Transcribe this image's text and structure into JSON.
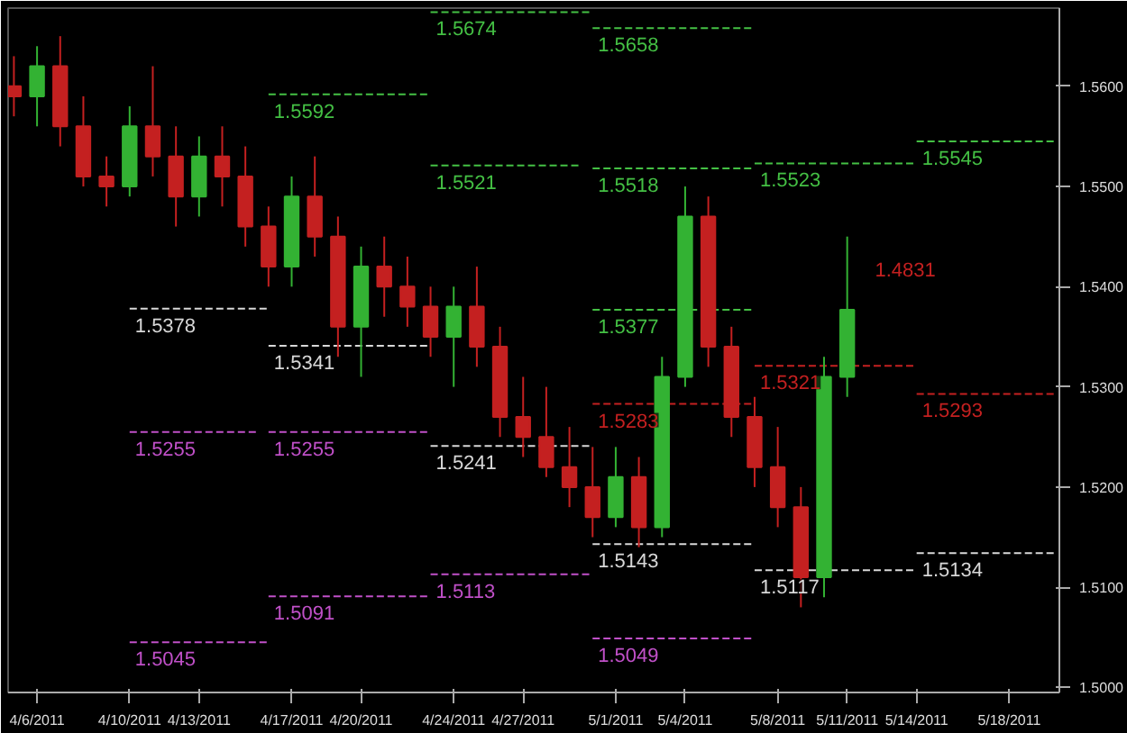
{
  "chart_data": {
    "type": "candlestick",
    "x": [
      "2011-04-05",
      "2011-04-06",
      "2011-04-07",
      "2011-04-08",
      "2011-04-09",
      "2011-04-10",
      "2011-04-11",
      "2011-04-12",
      "2011-04-13",
      "2011-04-14",
      "2011-04-15",
      "2011-04-16",
      "2011-04-17",
      "2011-04-18",
      "2011-04-19",
      "2011-04-20",
      "2011-04-21",
      "2011-04-22",
      "2011-04-23",
      "2011-04-24",
      "2011-04-25",
      "2011-04-26",
      "2011-04-27",
      "2011-04-28",
      "2011-04-29",
      "2011-04-30",
      "2011-05-01",
      "2011-05-02",
      "2011-05-03",
      "2011-05-04",
      "2011-05-05",
      "2011-05-06",
      "2011-05-07",
      "2011-05-08",
      "2011-05-09",
      "2011-05-10",
      "2011-05-11"
    ],
    "ohlc": [
      [
        1.56,
        1.563,
        1.557,
        1.559
      ],
      [
        1.559,
        1.564,
        1.556,
        1.562
      ],
      [
        1.562,
        1.565,
        1.554,
        1.556
      ],
      [
        1.556,
        1.559,
        1.55,
        1.551
      ],
      [
        1.551,
        1.553,
        1.548,
        1.55
      ],
      [
        1.55,
        1.558,
        1.549,
        1.556
      ],
      [
        1.556,
        1.562,
        1.551,
        1.553
      ],
      [
        1.553,
        1.556,
        1.546,
        1.549
      ],
      [
        1.549,
        1.555,
        1.547,
        1.553
      ],
      [
        1.553,
        1.556,
        1.548,
        1.551
      ],
      [
        1.551,
        1.554,
        1.544,
        1.546
      ],
      [
        1.546,
        1.548,
        1.54,
        1.542
      ],
      [
        1.542,
        1.551,
        1.54,
        1.549
      ],
      [
        1.549,
        1.553,
        1.543,
        1.545
      ],
      [
        1.545,
        1.547,
        1.533,
        1.536
      ],
      [
        1.536,
        1.544,
        1.531,
        1.542
      ],
      [
        1.542,
        1.545,
        1.537,
        1.54
      ],
      [
        1.54,
        1.543,
        1.536,
        1.538
      ],
      [
        1.538,
        1.54,
        1.533,
        1.535
      ],
      [
        1.535,
        1.54,
        1.53,
        1.538
      ],
      [
        1.538,
        1.542,
        1.532,
        1.534
      ],
      [
        1.534,
        1.536,
        1.525,
        1.527
      ],
      [
        1.527,
        1.531,
        1.523,
        1.525
      ],
      [
        1.525,
        1.53,
        1.521,
        1.522
      ],
      [
        1.522,
        1.526,
        1.518,
        1.52
      ],
      [
        1.52,
        1.524,
        1.515,
        1.517
      ],
      [
        1.517,
        1.524,
        1.516,
        1.521
      ],
      [
        1.521,
        1.523,
        1.514,
        1.516
      ],
      [
        1.516,
        1.533,
        1.515,
        1.531
      ],
      [
        1.531,
        1.55,
        1.53,
        1.547
      ],
      [
        1.547,
        1.549,
        1.532,
        1.534
      ],
      [
        1.534,
        1.536,
        1.525,
        1.527
      ],
      [
        1.527,
        1.529,
        1.52,
        1.522
      ],
      [
        1.522,
        1.526,
        1.516,
        1.518
      ],
      [
        1.518,
        1.52,
        1.508,
        1.511
      ],
      [
        1.511,
        1.533,
        1.509,
        1.531
      ],
      [
        1.531,
        1.545,
        1.529,
        1.5377
      ]
    ],
    "xlim": [
      "2011-04-04T18:00",
      "2011-05-20T04:00"
    ],
    "xticks": [
      {
        "value": "2011-04-06",
        "label": "4/6/2011"
      },
      {
        "value": "2011-04-10",
        "label": "4/10/2011"
      },
      {
        "value": "2011-04-13",
        "label": "4/13/2011"
      },
      {
        "value": "2011-04-17",
        "label": "4/17/2011"
      },
      {
        "value": "2011-04-20",
        "label": "4/20/2011"
      },
      {
        "value": "2011-04-24",
        "label": "4/24/2011"
      },
      {
        "value": "2011-04-27",
        "label": "4/27/2011"
      },
      {
        "value": "2011-05-01",
        "label": "5/1/2011"
      },
      {
        "value": "2011-05-04",
        "label": "5/4/2011"
      },
      {
        "value": "2011-05-08",
        "label": "5/8/2011"
      },
      {
        "value": "2011-05-11",
        "label": "5/11/2011"
      },
      {
        "value": "2011-05-14",
        "label": "5/14/2011"
      },
      {
        "value": "2011-05-18",
        "label": "5/18/2011"
      }
    ],
    "ylim": [
      1.4995,
      1.5678
    ],
    "yticks": [
      {
        "value": 1.5,
        "label": "1.5000"
      },
      {
        "value": 1.51,
        "label": "1.5100"
      },
      {
        "value": 1.52,
        "label": "1.5200"
      },
      {
        "value": 1.53,
        "label": "1.5300"
      },
      {
        "value": 1.54,
        "label": "1.5400"
      },
      {
        "value": 1.55,
        "label": "1.5500"
      },
      {
        "value": 1.56,
        "label": "1.5600"
      }
    ],
    "grid": false,
    "series": [
      {
        "type": "line",
        "line_style": "dashed",
        "name": "1.5674",
        "color": "#44c044",
        "x": [
          "2011-04-23",
          "2011-04-30"
        ],
        "values": [
          1.5674,
          1.5674
        ]
      },
      {
        "type": "line",
        "line_style": "dashed",
        "name": "1.5658",
        "color": "#44c044",
        "x": [
          "2011-04-30",
          "2011-05-07"
        ],
        "values": [
          1.5658,
          1.5658
        ]
      },
      {
        "type": "line",
        "line_style": "dashed",
        "name": "1.5592",
        "color": "#44c044",
        "x": [
          "2011-04-16",
          "2011-04-23"
        ],
        "values": [
          1.5592,
          1.5592
        ]
      },
      {
        "type": "line",
        "line_style": "dashed",
        "name": "1.5521",
        "color": "#44c044",
        "x": [
          "2011-04-23",
          "2011-04-29T12:00"
        ],
        "values": [
          1.5521,
          1.5521
        ]
      },
      {
        "type": "line",
        "line_style": "dashed",
        "name": "1.5518",
        "color": "#44c044",
        "x": [
          "2011-04-30",
          "2011-05-07"
        ],
        "values": [
          1.5518,
          1.5518
        ]
      },
      {
        "type": "line",
        "line_style": "dashed",
        "name": "1.5523",
        "color": "#44c044",
        "x": [
          "2011-05-07",
          "2011-05-14"
        ],
        "values": [
          1.5523,
          1.5523
        ]
      },
      {
        "type": "line",
        "line_style": "dashed",
        "name": "1.5545",
        "color": "#44c044",
        "x": [
          "2011-05-14",
          "2011-05-20"
        ],
        "values": [
          1.5545,
          1.5545
        ]
      },
      {
        "type": "line",
        "line_style": "dashed",
        "name": "1.5377",
        "color": "#44c044",
        "x": [
          "2011-04-30",
          "2011-05-07"
        ],
        "values": [
          1.5377,
          1.5377
        ]
      },
      {
        "type": "line",
        "line_style": "dashed",
        "name": "1.5378",
        "color": "#d8d8d8",
        "x": [
          "2011-04-10",
          "2011-04-16"
        ],
        "values": [
          1.5378,
          1.5378
        ]
      },
      {
        "type": "line",
        "line_style": "dashed",
        "name": "1.5341",
        "color": "#d8d8d8",
        "x": [
          "2011-04-16",
          "2011-04-23"
        ],
        "values": [
          1.5341,
          1.5341
        ]
      },
      {
        "type": "line",
        "line_style": "dashed",
        "name": "1.5255",
        "color": "#c050c8",
        "x": [
          "2011-04-10",
          "2011-04-15T12:00"
        ],
        "values": [
          1.5255,
          1.5255
        ]
      },
      {
        "type": "line",
        "line_style": "dashed",
        "name": "1.5255",
        "color": "#c050c8",
        "x": [
          "2011-04-16",
          "2011-04-23"
        ],
        "values": [
          1.5255,
          1.5255
        ]
      },
      {
        "type": "line",
        "line_style": "dashed",
        "name": "1.5241",
        "color": "#d8d8d8",
        "x": [
          "2011-04-23",
          "2011-04-30"
        ],
        "values": [
          1.5241,
          1.5241
        ]
      },
      {
        "type": "line",
        "line_style": "dashed",
        "name": "1.5283",
        "color": "#c42020",
        "x": [
          "2011-04-30",
          "2011-05-07"
        ],
        "values": [
          1.5283,
          1.5283
        ]
      },
      {
        "type": "line",
        "line_style": "dashed",
        "name": "1.5321",
        "color": "#c42020",
        "x": [
          "2011-05-07",
          "2011-05-14"
        ],
        "values": [
          1.5321,
          1.5321
        ]
      },
      {
        "type": "line",
        "line_style": "dashed",
        "name": "1.5293",
        "color": "#c42020",
        "x": [
          "2011-05-14",
          "2011-05-20"
        ],
        "values": [
          1.5293,
          1.5293
        ]
      },
      {
        "type": "line",
        "line_style": "dashed",
        "name": "1.5143",
        "color": "#d8d8d8",
        "x": [
          "2011-04-30",
          "2011-05-07"
        ],
        "values": [
          1.5143,
          1.5143
        ]
      },
      {
        "type": "line",
        "line_style": "dashed",
        "name": "1.5117",
        "color": "#d8d8d8",
        "x": [
          "2011-05-07",
          "2011-05-14"
        ],
        "values": [
          1.5117,
          1.5117
        ]
      },
      {
        "type": "line",
        "line_style": "dashed",
        "name": "1.5134",
        "color": "#d8d8d8",
        "x": [
          "2011-05-14",
          "2011-05-20"
        ],
        "values": [
          1.5134,
          1.5134
        ]
      },
      {
        "type": "line",
        "line_style": "dashed",
        "name": "1.5113",
        "color": "#c050c8",
        "x": [
          "2011-04-23",
          "2011-04-30"
        ],
        "values": [
          1.5113,
          1.5113
        ]
      },
      {
        "type": "line",
        "line_style": "dashed",
        "name": "1.5091",
        "color": "#c050c8",
        "x": [
          "2011-04-16",
          "2011-04-23"
        ],
        "values": [
          1.5091,
          1.5091
        ]
      },
      {
        "type": "line",
        "line_style": "dashed",
        "name": "1.5049",
        "color": "#c050c8",
        "x": [
          "2011-04-30",
          "2011-05-07"
        ],
        "values": [
          1.5049,
          1.5049
        ]
      },
      {
        "type": "line",
        "line_style": "dashed",
        "name": "1.5045",
        "color": "#c050c8",
        "x": [
          "2011-04-10",
          "2011-04-16"
        ],
        "values": [
          1.5045,
          1.5045
        ]
      }
    ],
    "annotations": [
      "1.4831"
    ]
  }
}
